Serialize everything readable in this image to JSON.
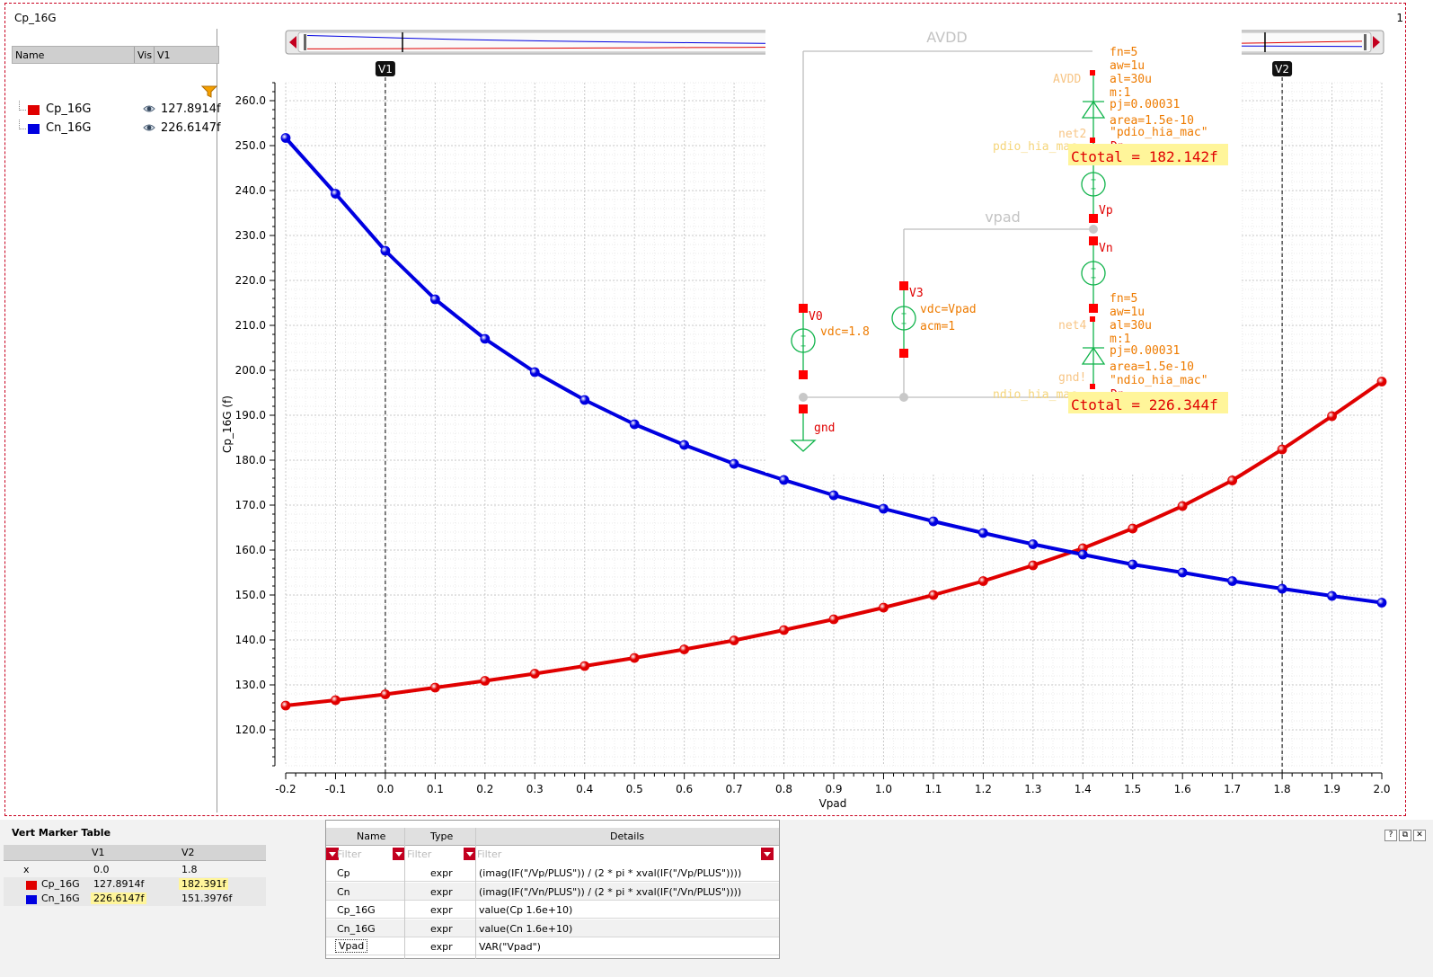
{
  "window": {
    "title": "Cp_16G",
    "index": "1"
  },
  "legend": {
    "headers": {
      "name": "Name",
      "vis": "Vis",
      "v1": "V1"
    },
    "items": [
      {
        "name": "Cp_16G",
        "value": "127.8914f",
        "color": "#e00000"
      },
      {
        "name": "Cn_16G",
        "value": "226.6147f",
        "color": "#0000e0"
      }
    ]
  },
  "chart_data": {
    "type": "line",
    "xlabel": "Vpad",
    "ylabel": "Cp_16G (f)",
    "xlim": [
      -0.2,
      2.0
    ],
    "ylim": [
      112.0,
      264.0
    ],
    "x_ticks": [
      "-0.2",
      "-0.1",
      "0.0",
      "0.1",
      "0.2",
      "0.3",
      "0.4",
      "0.5",
      "0.6",
      "0.7",
      "0.8",
      "0.9",
      "1.0",
      "1.1",
      "1.2",
      "1.3",
      "1.4",
      "1.5",
      "1.6",
      "1.7",
      "1.8",
      "1.9",
      "2.0"
    ],
    "y_ticks": [
      "120.0",
      "130.0",
      "140.0",
      "150.0",
      "160.0",
      "170.0",
      "180.0",
      "190.0",
      "200.0",
      "210.0",
      "220.0",
      "230.0",
      "240.0",
      "250.0",
      "260.0"
    ],
    "grid": true,
    "x": [
      -0.2,
      -0.1,
      0.0,
      0.1,
      0.2,
      0.3,
      0.4,
      0.5,
      0.6,
      0.7,
      0.8,
      0.9,
      1.0,
      1.1,
      1.2,
      1.3,
      1.4,
      1.5,
      1.6,
      1.7,
      1.8,
      1.9,
      2.0
    ],
    "series": [
      {
        "name": "Cp_16G",
        "color": "#e00000",
        "values": [
          125.4,
          126.6,
          127.9,
          129.4,
          130.9,
          132.5,
          134.2,
          136.0,
          137.9,
          139.9,
          142.2,
          144.6,
          147.2,
          150.0,
          153.1,
          156.6,
          160.4,
          164.8,
          169.8,
          175.5,
          182.4,
          189.8,
          197.5
        ]
      },
      {
        "name": "Cn_16G",
        "color": "#0000e0",
        "values": [
          251.7,
          239.3,
          226.6,
          215.8,
          207.0,
          199.6,
          193.4,
          188.0,
          183.4,
          179.2,
          175.6,
          172.2,
          169.2,
          166.4,
          163.8,
          161.3,
          159.0,
          156.8,
          155.0,
          153.1,
          151.4,
          149.8,
          148.3
        ]
      }
    ],
    "markers": [
      {
        "label": "V1",
        "x": 0.0
      },
      {
        "label": "V2",
        "x": 1.8
      }
    ]
  },
  "schematic": {
    "net_avdd": "AVDD",
    "net_vpad": "vpad",
    "v0": {
      "name": "V0",
      "param": "vdc=1.8",
      "ground": "gnd"
    },
    "v3": {
      "name": "V3",
      "params": [
        "vdc=Vpad",
        "acm=1"
      ]
    },
    "vp": "Vp",
    "vn": "Vn",
    "diode_top": {
      "params": [
        "fn=5",
        "aw=1u",
        "al=30u",
        "m:1",
        "pj=0.00031",
        "area=1.5e-10",
        "\"pdio_hia_mac\""
      ],
      "net_above": "AVDD",
      "net_side": "net2",
      "model": "pdio_hia_mac",
      "pin": "Dp",
      "ctotal": "Ctotal = 182.142f"
    },
    "diode_bottom": {
      "params": [
        "fn=5",
        "aw=1u",
        "al=30u",
        "m:1",
        "pj=0.00031",
        "area=1.5e-10",
        "\"ndio_hia_mac\""
      ],
      "net_above": "net4",
      "net_side": "gnd!",
      "model": "ndio_hia_mac",
      "pin": "Dn",
      "ctotal": "Ctotal = 226.344f"
    }
  },
  "vert_marker_table": {
    "title": "Vert Marker Table",
    "headers": [
      "V1",
      "V2"
    ],
    "rows": [
      {
        "name": "x",
        "v1": "0.0",
        "v2": "1.8"
      },
      {
        "name": "Cp_16G",
        "v1": "127.8914f",
        "v2": "182.391f",
        "color": "#e00000"
      },
      {
        "name": "Cn_16G",
        "v1": "226.6147f",
        "v2": "151.3976f",
        "color": "#0000e0"
      }
    ]
  },
  "expr_table": {
    "headers": {
      "name": "Name",
      "type": "Type",
      "details": "Details"
    },
    "filter_placeholder": "Filter",
    "rows": [
      {
        "name": "Cp",
        "type": "expr",
        "details": "(imag(IF(\"/Vp/PLUS\")) / (2 * pi * xval(IF(\"/Vp/PLUS\"))))"
      },
      {
        "name": "Cn",
        "type": "expr",
        "details": "(imag(IF(\"/Vn/PLUS\")) / (2 * pi * xval(IF(\"/Vn/PLUS\"))))"
      },
      {
        "name": "Cp_16G",
        "type": "expr",
        "details": "value(Cp 1.6e+10)"
      },
      {
        "name": "Cn_16G",
        "type": "expr",
        "details": "value(Cn 1.6e+10)"
      },
      {
        "name": "Vpad",
        "type": "expr",
        "details": "VAR(\"Vpad\")"
      }
    ]
  }
}
